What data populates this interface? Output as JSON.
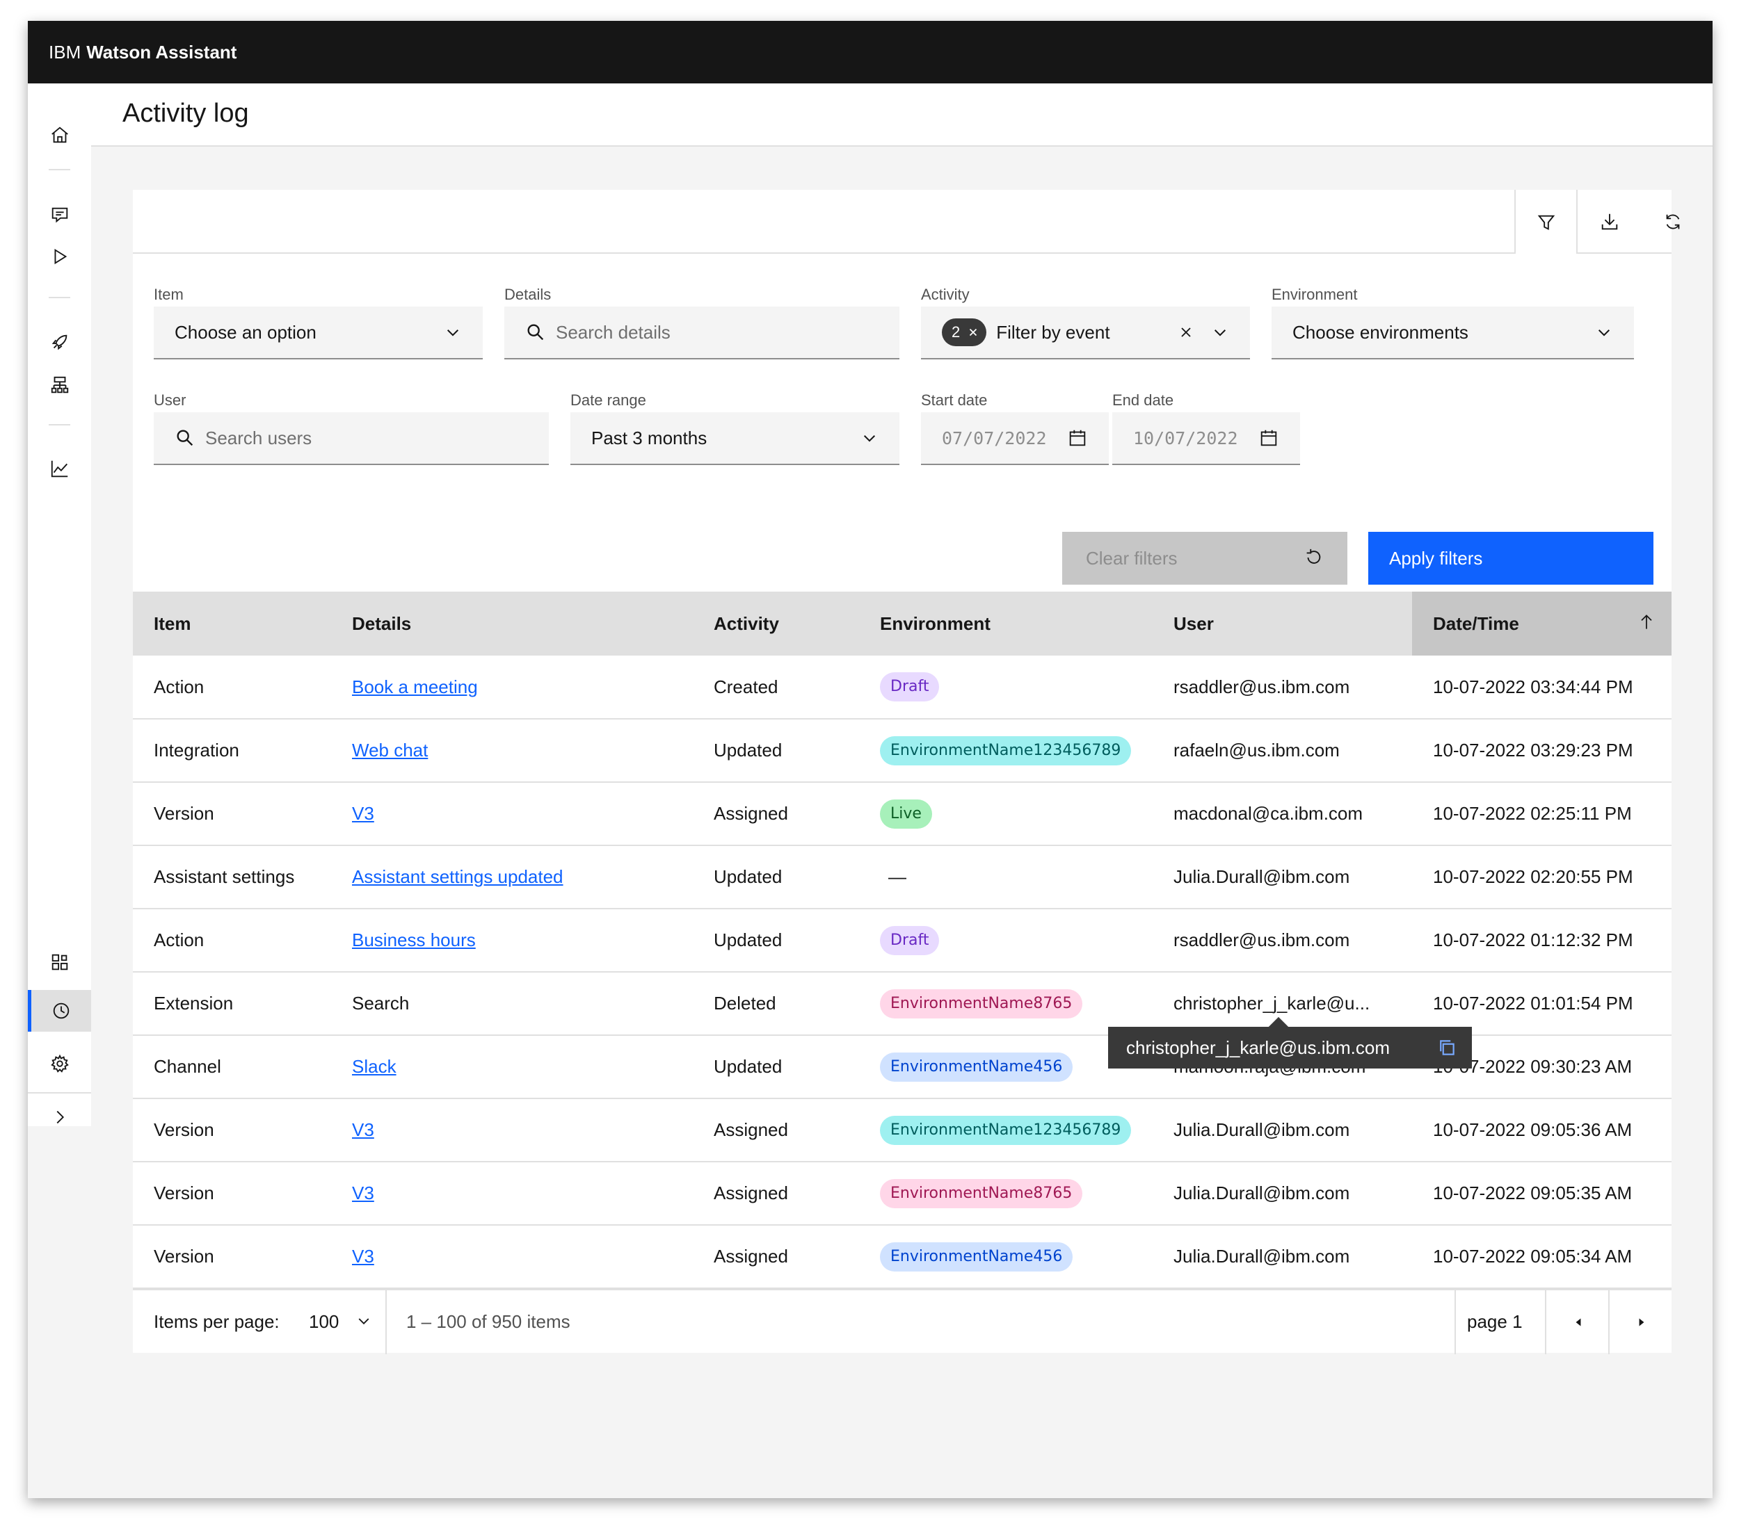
{
  "app": {
    "brand": "IBM",
    "product": "Watson Assistant"
  },
  "page": {
    "title": "Activity log"
  },
  "filters": {
    "item": {
      "label": "Item",
      "value": "Choose an option"
    },
    "details": {
      "label": "Details",
      "placeholder": "Search details"
    },
    "activity": {
      "label": "Activity",
      "count": "2",
      "value": "Filter by event"
    },
    "environment": {
      "label": "Environment",
      "value": "Choose environments"
    },
    "user": {
      "label": "User",
      "placeholder": "Search users"
    },
    "date_range": {
      "label": "Date range",
      "value": "Past 3 months"
    },
    "start_date": {
      "label": "Start date",
      "value": "07/07/2022"
    },
    "end_date": {
      "label": "End date",
      "value": "10/07/2022"
    },
    "clear_label": "Clear filters",
    "apply_label": "Apply filters"
  },
  "table": {
    "headers": [
      "Item",
      "Details",
      "Activity",
      "Environment",
      "User",
      "Date/Time"
    ],
    "rows": [
      {
        "item": "Action",
        "details": "Book a meeting",
        "details_link": true,
        "activity": "Created",
        "env": "Draft",
        "env_style": "draft",
        "user": "rsaddler@us.ibm.com",
        "datetime": "10-07-2022 03:34:44 PM"
      },
      {
        "item": "Integration",
        "details": "Web chat",
        "details_link": true,
        "activity": "Updated",
        "env": "EnvironmentName123456789",
        "env_style": "teal",
        "user": "rafaeln@us.ibm.com",
        "datetime": "10-07-2022 03:29:23 PM"
      },
      {
        "item": "Version",
        "details": "V3",
        "details_link": true,
        "activity": "Assigned",
        "env": "Live",
        "env_style": "green",
        "user": "macdonal@ca.ibm.com",
        "datetime": "10-07-2022 02:25:11 PM"
      },
      {
        "item": "Assistant settings",
        "details": "Assistant settings updated",
        "details_link": true,
        "activity": "Updated",
        "env": "—",
        "env_style": "none",
        "user": "Julia.Durall@ibm.com",
        "datetime": "10-07-2022 02:20:55 PM"
      },
      {
        "item": "Action",
        "details": "Business hours",
        "details_link": true,
        "activity": "Updated",
        "env": "Draft",
        "env_style": "draft",
        "user": "rsaddler@us.ibm.com",
        "datetime": "10-07-2022 01:12:32 PM"
      },
      {
        "item": "Extension",
        "details": "Search",
        "details_link": false,
        "activity": "Deleted",
        "env": "EnvironmentName8765",
        "env_style": "pink",
        "user": "christopher_j_karle@u...",
        "datetime": "10-07-2022 01:01:54 PM"
      },
      {
        "item": "Channel",
        "details": "Slack",
        "details_link": true,
        "activity": "Updated",
        "env": "EnvironmentName456",
        "env_style": "blue",
        "user": "mamoon.raja@ibm.com",
        "datetime": "10-07-2022 09:30:23 AM"
      },
      {
        "item": "Version",
        "details": "V3",
        "details_link": true,
        "activity": "Assigned",
        "env": "EnvironmentName123456789",
        "env_style": "teal",
        "user": "Julia.Durall@ibm.com",
        "datetime": "10-07-2022 09:05:36 AM"
      },
      {
        "item": "Version",
        "details": "V3",
        "details_link": true,
        "activity": "Assigned",
        "env": "EnvironmentName8765",
        "env_style": "pink",
        "user": "Julia.Durall@ibm.com",
        "datetime": "10-07-2022 09:05:35 AM"
      },
      {
        "item": "Version",
        "details": "V3",
        "details_link": true,
        "activity": "Assigned",
        "env": "EnvironmentName456",
        "env_style": "blue",
        "user": "Julia.Durall@ibm.com",
        "datetime": "10-07-2022 09:05:34 AM"
      }
    ]
  },
  "tooltip": {
    "text": "christopher_j_karle@us.ibm.com"
  },
  "pagination": {
    "items_per_page_label": "Items per page:",
    "items_per_page": "100",
    "range": "1 – 100 of 950 items",
    "page": "page 1"
  },
  "colors": {
    "accent": "#0f62fe",
    "topbar": "#161616"
  }
}
